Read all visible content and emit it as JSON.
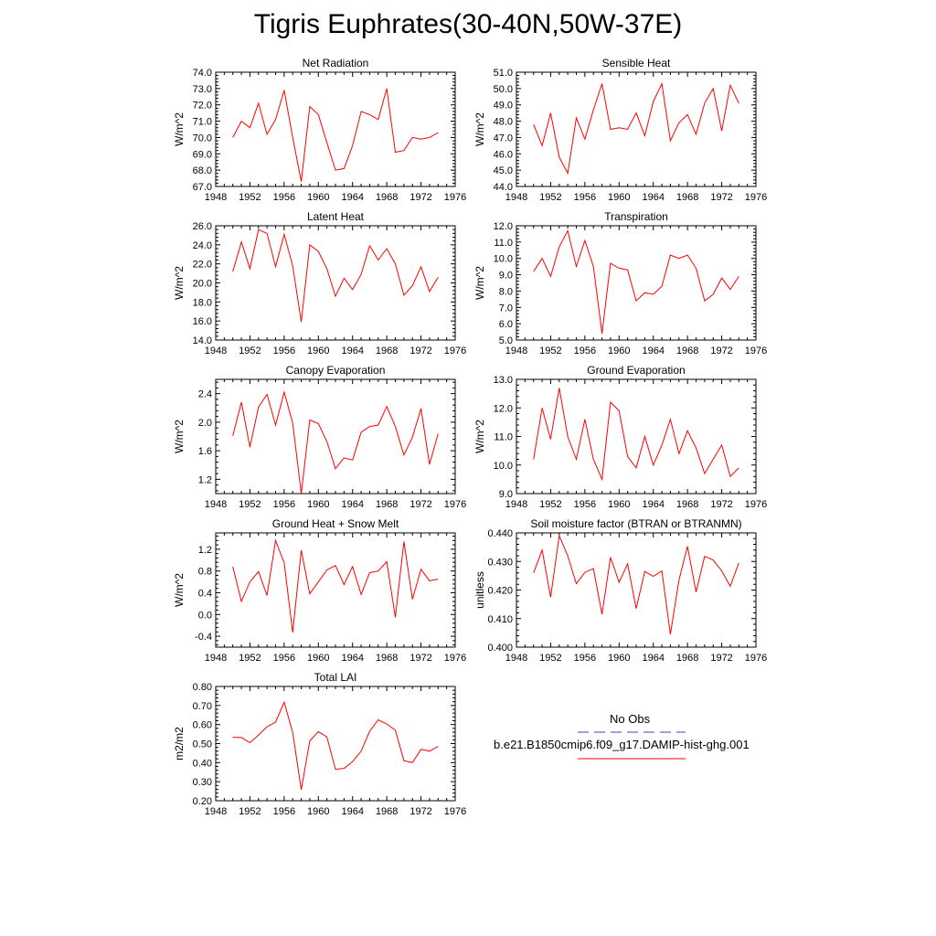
{
  "title": "Tigris Euphrates(30-40N,50W-37E)",
  "colors": {
    "model": "#ff0000",
    "obs": "#4040c0",
    "axis": "#000000"
  },
  "legend": {
    "obs_label": "No Obs",
    "model_label": "b.e21.B1850cmip6.f09_g17.DAMIP-hist-ghg.001"
  },
  "chart_data": [
    {
      "type": "line",
      "title": "Net Radiation",
      "ylabel": "W/m^2",
      "xlim": [
        1948,
        1976
      ],
      "ylim": [
        67,
        74
      ],
      "xticks": [
        "1948",
        "1952",
        "1956",
        "1960",
        "1964",
        "1968",
        "1972",
        "1976"
      ],
      "yticks": [
        "67.0",
        "68.0",
        "69.0",
        "70.0",
        "71.0",
        "72.0",
        "73.0",
        "74.0"
      ],
      "x": [
        1950,
        1951,
        1952,
        1953,
        1954,
        1955,
        1956,
        1957,
        1958,
        1959,
        1960,
        1961,
        1962,
        1963,
        1964,
        1965,
        1966,
        1967,
        1968,
        1969,
        1970,
        1971,
        1972,
        1973,
        1974
      ],
      "series": [
        {
          "values": [
            70.0,
            71.0,
            70.6,
            72.1,
            70.2,
            71.1,
            72.9,
            70.0,
            67.3,
            71.9,
            71.4,
            69.7,
            68.0,
            68.1,
            69.5,
            71.6,
            71.4,
            71.1,
            73.0,
            69.1,
            69.2,
            70.0,
            69.9,
            70.0,
            70.3
          ]
        }
      ]
    },
    {
      "type": "line",
      "title": "Sensible Heat",
      "ylabel": "W/m^2",
      "xlim": [
        1948,
        1976
      ],
      "ylim": [
        44,
        51
      ],
      "xticks": [
        "1948",
        "1952",
        "1956",
        "1960",
        "1964",
        "1968",
        "1972",
        "1976"
      ],
      "yticks": [
        "44.0",
        "45.0",
        "46.0",
        "47.0",
        "48.0",
        "49.0",
        "50.0",
        "51.0"
      ],
      "x": [
        1950,
        1951,
        1952,
        1953,
        1954,
        1955,
        1956,
        1957,
        1958,
        1959,
        1960,
        1961,
        1962,
        1963,
        1964,
        1965,
        1966,
        1967,
        1968,
        1969,
        1970,
        1971,
        1972,
        1973,
        1974
      ],
      "series": [
        {
          "values": [
            47.8,
            46.5,
            48.5,
            45.8,
            44.8,
            48.2,
            46.9,
            48.7,
            50.3,
            47.5,
            47.6,
            47.5,
            48.5,
            47.1,
            49.2,
            50.3,
            46.8,
            47.9,
            48.4,
            47.2,
            49.1,
            50.0,
            47.4,
            50.2,
            49.1
          ]
        }
      ]
    },
    {
      "type": "line",
      "title": "Latent Heat",
      "ylabel": "W/m^2",
      "xlim": [
        1948,
        1976
      ],
      "ylim": [
        14,
        26
      ],
      "xticks": [
        "1948",
        "1952",
        "1956",
        "1960",
        "1964",
        "1968",
        "1972",
        "1976"
      ],
      "yticks": [
        "14.0",
        "16.0",
        "18.0",
        "20.0",
        "22.0",
        "24.0",
        "26.0"
      ],
      "x": [
        1950,
        1951,
        1952,
        1953,
        1954,
        1955,
        1956,
        1957,
        1958,
        1959,
        1960,
        1961,
        1962,
        1963,
        1964,
        1965,
        1966,
        1967,
        1968,
        1969,
        1970,
        1971,
        1972,
        1973,
        1974
      ],
      "series": [
        {
          "values": [
            21.2,
            24.3,
            21.5,
            25.6,
            25.2,
            21.7,
            25.1,
            21.8,
            15.9,
            24.0,
            23.3,
            21.5,
            18.6,
            20.5,
            19.3,
            20.9,
            23.9,
            22.4,
            23.6,
            22.0,
            18.7,
            19.7,
            21.7,
            19.1,
            20.6
          ]
        }
      ]
    },
    {
      "type": "line",
      "title": "Transpiration",
      "ylabel": "W/m^2",
      "xlim": [
        1948,
        1976
      ],
      "ylim": [
        5,
        12
      ],
      "xticks": [
        "1948",
        "1952",
        "1956",
        "1960",
        "1964",
        "1968",
        "1972",
        "1976"
      ],
      "yticks": [
        "5.0",
        "6.0",
        "7.0",
        "8.0",
        "9.0",
        "10.0",
        "11.0",
        "12.0"
      ],
      "x": [
        1950,
        1951,
        1952,
        1953,
        1954,
        1955,
        1956,
        1957,
        1958,
        1959,
        1960,
        1961,
        1962,
        1963,
        1964,
        1965,
        1966,
        1967,
        1968,
        1969,
        1970,
        1971,
        1972,
        1973,
        1974
      ],
      "series": [
        {
          "values": [
            9.2,
            10.0,
            8.9,
            10.7,
            11.7,
            9.5,
            11.1,
            9.5,
            5.4,
            9.7,
            9.4,
            9.3,
            7.4,
            7.9,
            7.8,
            8.3,
            10.2,
            10.0,
            10.2,
            9.4,
            7.4,
            7.8,
            8.8,
            8.1,
            8.9
          ]
        }
      ]
    },
    {
      "type": "line",
      "title": "Canopy Evaporation",
      "ylabel": "W/m^2",
      "xlim": [
        1948,
        1976
      ],
      "ylim": [
        1.0,
        2.6
      ],
      "xticks": [
        "1948",
        "1952",
        "1956",
        "1960",
        "1964",
        "1968",
        "1972",
        "1976"
      ],
      "yticks": [
        "1.2",
        "1.6",
        "2.0",
        "2.4"
      ],
      "x": [
        1950,
        1951,
        1952,
        1953,
        1954,
        1955,
        1956,
        1957,
        1958,
        1959,
        1960,
        1961,
        1962,
        1963,
        1964,
        1965,
        1966,
        1967,
        1968,
        1969,
        1970,
        1971,
        1972,
        1973,
        1974
      ],
      "series": [
        {
          "values": [
            1.81,
            2.28,
            1.65,
            2.21,
            2.39,
            1.96,
            2.42,
            1.99,
            1.0,
            2.03,
            1.98,
            1.73,
            1.35,
            1.5,
            1.47,
            1.86,
            1.94,
            1.96,
            2.22,
            1.94,
            1.54,
            1.79,
            2.19,
            1.41,
            1.84
          ]
        }
      ]
    },
    {
      "type": "line",
      "title": "Ground Evaporation",
      "ylabel": "W/m^2",
      "xlim": [
        1948,
        1976
      ],
      "ylim": [
        9,
        13
      ],
      "xticks": [
        "1948",
        "1952",
        "1956",
        "1960",
        "1964",
        "1968",
        "1972",
        "1976"
      ],
      "yticks": [
        "9.0",
        "10.0",
        "11.0",
        "12.0",
        "13.0"
      ],
      "x": [
        1950,
        1951,
        1952,
        1953,
        1954,
        1955,
        1956,
        1957,
        1958,
        1959,
        1960,
        1961,
        1962,
        1963,
        1964,
        1965,
        1966,
        1967,
        1968,
        1969,
        1970,
        1971,
        1972,
        1973,
        1974
      ],
      "series": [
        {
          "values": [
            10.2,
            12.0,
            10.9,
            12.7,
            11.0,
            10.2,
            11.6,
            10.2,
            9.5,
            12.2,
            11.9,
            10.3,
            9.9,
            11.0,
            10.0,
            10.7,
            11.6,
            10.4,
            11.2,
            10.6,
            9.7,
            10.2,
            10.7,
            9.6,
            9.9
          ]
        }
      ]
    },
    {
      "type": "line",
      "title": "Ground Heat + Snow Melt",
      "ylabel": "W/m^2",
      "xlim": [
        1948,
        1976
      ],
      "ylim": [
        -0.6,
        1.5
      ],
      "xticks": [
        "1948",
        "1952",
        "1956",
        "1960",
        "1964",
        "1968",
        "1972",
        "1976"
      ],
      "yticks": [
        "-0.4",
        "0.0",
        "0.4",
        "0.8",
        "1.2"
      ],
      "x": [
        1950,
        1951,
        1952,
        1953,
        1954,
        1955,
        1956,
        1957,
        1958,
        1959,
        1960,
        1961,
        1962,
        1963,
        1964,
        1965,
        1966,
        1967,
        1968,
        1969,
        1970,
        1971,
        1972,
        1973,
        1974
      ],
      "series": [
        {
          "values": [
            0.88,
            0.24,
            0.6,
            0.79,
            0.35,
            1.36,
            0.95,
            -0.33,
            1.18,
            0.38,
            0.6,
            0.82,
            0.9,
            0.55,
            0.88,
            0.37,
            0.77,
            0.8,
            0.97,
            -0.05,
            1.34,
            0.28,
            0.83,
            0.62,
            0.65
          ]
        }
      ]
    },
    {
      "type": "line",
      "title": "Soil moisture factor (BTRAN or BTRANMN)",
      "ylabel": "unitless",
      "xlim": [
        1948,
        1976
      ],
      "ylim": [
        0.4,
        0.44
      ],
      "xticks": [
        "1948",
        "1952",
        "1956",
        "1960",
        "1964",
        "1968",
        "1972",
        "1976"
      ],
      "yticks": [
        "0.400",
        "0.410",
        "0.420",
        "0.430",
        "0.440"
      ],
      "x": [
        1950,
        1951,
        1952,
        1953,
        1954,
        1955,
        1956,
        1957,
        1958,
        1959,
        1960,
        1961,
        1962,
        1963,
        1964,
        1965,
        1966,
        1967,
        1968,
        1969,
        1970,
        1971,
        1972,
        1973,
        1974
      ],
      "series": [
        {
          "values": [
            0.426,
            0.434,
            0.4175,
            0.439,
            0.432,
            0.4222,
            0.4262,
            0.4275,
            0.4115,
            0.4315,
            0.4227,
            0.4292,
            0.4135,
            0.4265,
            0.4248,
            0.4267,
            0.4045,
            0.4235,
            0.4353,
            0.4193,
            0.4318,
            0.4305,
            0.4267,
            0.4213,
            0.4295
          ]
        }
      ]
    },
    {
      "type": "line",
      "title": "Total LAI",
      "ylabel": "m2/m2",
      "xlim": [
        1948,
        1976
      ],
      "ylim": [
        0.2,
        0.8
      ],
      "xticks": [
        "1948",
        "1952",
        "1956",
        "1960",
        "1964",
        "1968",
        "1972",
        "1976"
      ],
      "yticks": [
        "0.20",
        "0.30",
        "0.40",
        "0.50",
        "0.60",
        "0.70",
        "0.80"
      ],
      "x": [
        1950,
        1951,
        1952,
        1953,
        1954,
        1955,
        1956,
        1957,
        1958,
        1959,
        1960,
        1961,
        1962,
        1963,
        1964,
        1965,
        1966,
        1967,
        1968,
        1969,
        1970,
        1971,
        1972,
        1973,
        1974
      ],
      "series": [
        {
          "values": [
            0.533,
            0.532,
            0.505,
            0.545,
            0.588,
            0.613,
            0.717,
            0.558,
            0.258,
            0.514,
            0.563,
            0.535,
            0.365,
            0.37,
            0.405,
            0.46,
            0.565,
            0.625,
            0.603,
            0.57,
            0.41,
            0.4,
            0.47,
            0.46,
            0.485
          ]
        }
      ]
    }
  ]
}
